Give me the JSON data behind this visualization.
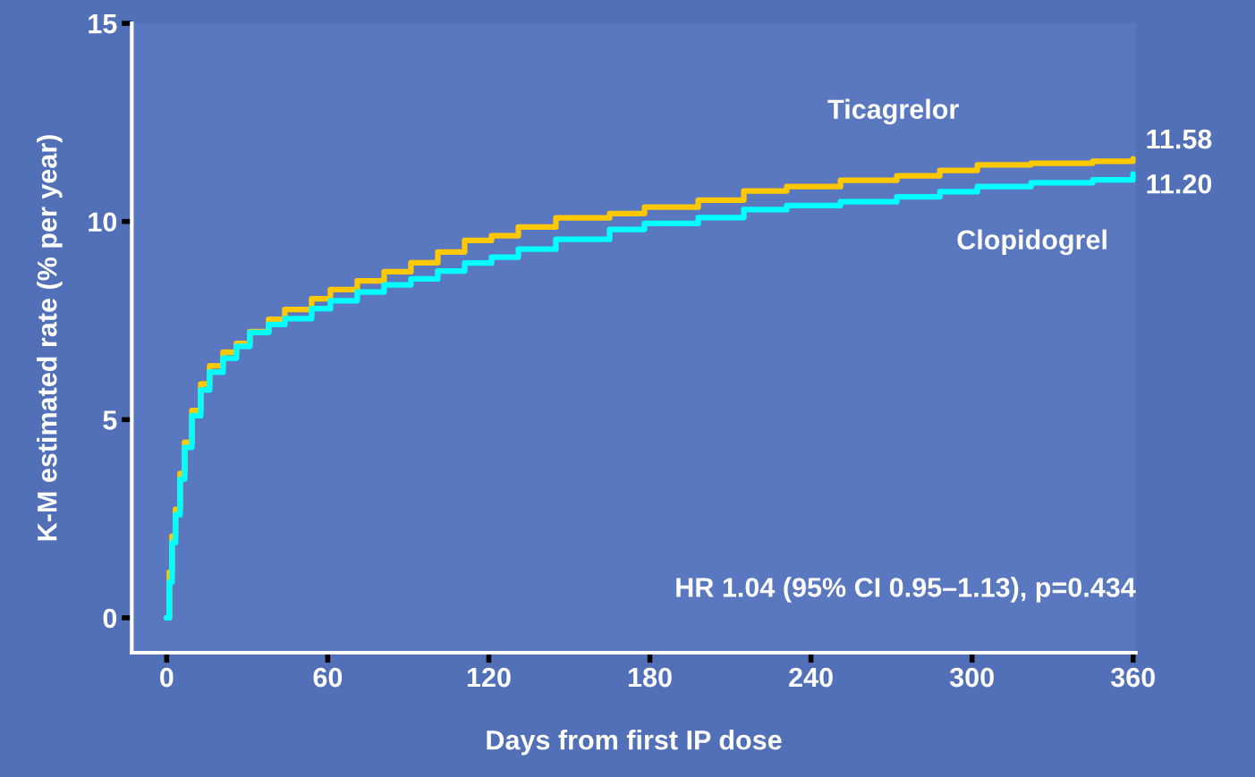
{
  "chart_data": {
    "type": "step",
    "xlabel": "Days from first IP dose",
    "ylabel": "K-M estimated rate (% per year)",
    "xlim": [
      -13,
      361
    ],
    "ylim": [
      -0.88,
      15
    ],
    "xticks": [
      0,
      60,
      120,
      180,
      240,
      300,
      360
    ],
    "yticks": [
      0,
      5,
      10,
      15
    ],
    "grid": false,
    "legend": false,
    "annotations": [
      "HR 1.04 (95% CI 0.95–1.13), p=0.434"
    ],
    "series": [
      {
        "name": "Ticagrelor",
        "color": "#ffc800",
        "x": [
          0,
          1,
          2,
          3.3,
          5,
          6.7,
          9.4,
          12.7,
          16,
          21,
          26,
          31,
          38,
          44,
          54,
          61,
          71,
          81,
          91,
          101,
          111,
          121,
          131,
          145,
          165,
          178,
          198,
          215,
          231,
          251,
          272,
          288,
          302,
          322,
          345,
          360
        ],
        "values": [
          0,
          1.15,
          2.06,
          2.74,
          3.64,
          4.43,
          5.23,
          5.9,
          6.36,
          6.7,
          6.92,
          7.22,
          7.53,
          7.78,
          8.05,
          8.28,
          8.5,
          8.73,
          8.96,
          9.23,
          9.52,
          9.64,
          9.86,
          10.09,
          10.2,
          10.36,
          10.54,
          10.77,
          10.88,
          11.04,
          11.15,
          11.29,
          11.43,
          11.47,
          11.52,
          11.58
        ],
        "value_labels": [
          null,
          null,
          null,
          null,
          null,
          null,
          null,
          null,
          null,
          null,
          null,
          null,
          null,
          null,
          null,
          null,
          null,
          null,
          null,
          null,
          null,
          null,
          null,
          null,
          null,
          null,
          null,
          null,
          null,
          null,
          null,
          null,
          null,
          null,
          null,
          "11.58"
        ]
      },
      {
        "name": "Clopidogrel",
        "color": "#00ffff",
        "x": [
          0,
          1,
          2,
          3.3,
          5,
          6.7,
          9.4,
          12.7,
          16,
          21,
          26,
          31,
          38,
          44,
          54,
          61,
          71,
          81,
          91,
          101,
          111,
          121,
          131,
          145,
          165,
          178,
          198,
          215,
          231,
          251,
          272,
          288,
          302,
          322,
          345,
          360
        ],
        "values": [
          0,
          0.9,
          1.9,
          2.6,
          3.5,
          4.3,
          5.1,
          5.75,
          6.2,
          6.55,
          6.85,
          7.2,
          7.4,
          7.55,
          7.8,
          8.0,
          8.22,
          8.4,
          8.55,
          8.75,
          8.95,
          9.1,
          9.3,
          9.55,
          9.8,
          9.95,
          10.1,
          10.3,
          10.4,
          10.5,
          10.62,
          10.75,
          10.88,
          10.98,
          11.05,
          11.2
        ],
        "value_labels": [
          null,
          null,
          null,
          null,
          null,
          null,
          null,
          null,
          null,
          null,
          null,
          null,
          null,
          null,
          null,
          null,
          null,
          null,
          null,
          null,
          null,
          null,
          null,
          null,
          null,
          null,
          null,
          null,
          null,
          null,
          null,
          null,
          null,
          null,
          null,
          "11.20"
        ]
      }
    ]
  }
}
